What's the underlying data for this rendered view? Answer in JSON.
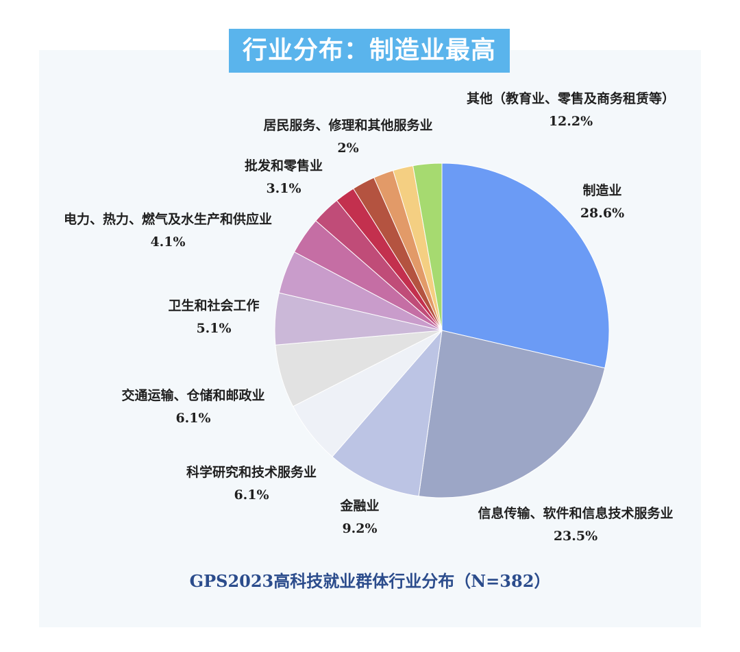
{
  "title": "行业分布：制造业最高",
  "chart_data": {
    "type": "pie",
    "subtitle": "GPS2023高科技就业群体行业分布（N=382）",
    "slices": [
      {
        "label": "制造业",
        "value": 28.6,
        "display": "28.6%",
        "color": "#6b9bf5"
      },
      {
        "label": "信息传输、软件和信息技术服务业",
        "value": 23.5,
        "display": "23.5%",
        "color": "#9ca6c6"
      },
      {
        "label": "金融业",
        "value": 9.2,
        "display": "9.2%",
        "color": "#bcc4e4"
      },
      {
        "label": "科学研究和技术服务业",
        "value": 6.1,
        "display": "6.1%",
        "color": "#eef1f7"
      },
      {
        "label": "交通运输、仓储和邮政业",
        "value": 6.1,
        "display": "6.1%",
        "color": "#e2e2e2"
      },
      {
        "label": "卫生和社会工作",
        "value": 5.1,
        "display": "5.1%",
        "color": "#cbb8d8"
      },
      {
        "label": "电力、热力、燃气及水生产和供应业",
        "value": 4.1,
        "display": "4.1%",
        "color": "#c99ccb"
      },
      {
        "label": "批发和零售业",
        "value": 3.1,
        "display": "3.1%",
        "color": "#c56ea4"
      },
      {
        "label": "居民服务、修理和其他服务业",
        "value": 2,
        "display": "2%",
        "color": "#c04c78"
      },
      {
        "label": "其他（教育业、零售及商务租赁等）",
        "value": 12.2,
        "display": "12.2%",
        "color": "#c3304e"
      }
    ],
    "extra_slices": [
      {
        "color": "#b45340"
      },
      {
        "color": "#e29a68"
      },
      {
        "color": "#f4cf82"
      },
      {
        "color": "#a6da70"
      }
    ]
  }
}
